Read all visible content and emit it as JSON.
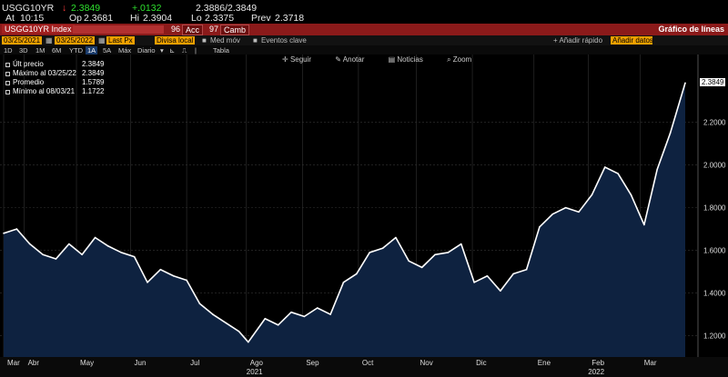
{
  "quote": {
    "ticker": "USGG10YR",
    "arrow": "↓",
    "price": "2.3849",
    "change": "+.0132",
    "bid_ask": "2.3886/2.3849",
    "at_label": "At",
    "time": "10:15",
    "op_label": "Op",
    "open": "2.3681",
    "hi_label": "Hi",
    "high": "2.3904",
    "lo_label": "Lo",
    "low": "2.3375",
    "prev_label": "Prev",
    "prev": "2.3718"
  },
  "redbar": {
    "index": "USGG10YR Index",
    "acc_num": "96",
    "acc": "Acc",
    "camb_num": "97",
    "camb": "Camb",
    "title": "Gráfico de líneas"
  },
  "controls": {
    "date_from": "03/25/2021",
    "date_to": "03/25/2022",
    "field": "Last Px",
    "currency": "Divisa local",
    "studies": "Med móv",
    "events": "Eventos clave",
    "quick_add": "+ Añadir rápido",
    "add_data": "Añadir datos"
  },
  "ranges": {
    "items": [
      "1D",
      "3D",
      "1M",
      "6M",
      "YTD",
      "1A",
      "5A",
      "Máx"
    ],
    "selected": "1A",
    "period": "Diario",
    "table": "Tabla"
  },
  "toolbar": {
    "follow": "Seguir",
    "annotate": "Anotar",
    "news": "Noticias",
    "zoom": "Zoom"
  },
  "legend": [
    {
      "label": "Últ precio",
      "value": "2.3849"
    },
    {
      "label": "Máximo al 03/25/22",
      "value": "2.3849"
    },
    {
      "label": "Promedio",
      "value": "1.5789"
    },
    {
      "label": "Mínimo al 08/03/21",
      "value": "1.1722"
    }
  ],
  "chart_data": {
    "type": "area",
    "x": [
      "2021-03-25",
      "2021-04-01",
      "2021-04-08",
      "2021-04-15",
      "2021-04-22",
      "2021-04-29",
      "2021-05-06",
      "2021-05-13",
      "2021-05-20",
      "2021-05-27",
      "2021-06-03",
      "2021-06-10",
      "2021-06-17",
      "2021-06-24",
      "2021-07-01",
      "2021-07-08",
      "2021-07-15",
      "2021-07-22",
      "2021-07-29",
      "2021-08-03",
      "2021-08-12",
      "2021-08-19",
      "2021-08-26",
      "2021-09-02",
      "2021-09-09",
      "2021-09-16",
      "2021-09-23",
      "2021-09-30",
      "2021-10-07",
      "2021-10-14",
      "2021-10-21",
      "2021-10-28",
      "2021-11-04",
      "2021-11-11",
      "2021-11-18",
      "2021-11-25",
      "2021-12-02",
      "2021-12-09",
      "2021-12-16",
      "2021-12-23",
      "2021-12-30",
      "2022-01-06",
      "2022-01-13",
      "2022-01-20",
      "2022-01-27",
      "2022-02-03",
      "2022-02-10",
      "2022-02-17",
      "2022-02-24",
      "2022-03-03",
      "2022-03-10",
      "2022-03-17",
      "2022-03-25"
    ],
    "values": [
      1.68,
      1.7,
      1.63,
      1.58,
      1.56,
      1.63,
      1.58,
      1.66,
      1.62,
      1.59,
      1.57,
      1.45,
      1.51,
      1.48,
      1.46,
      1.35,
      1.3,
      1.26,
      1.22,
      1.17,
      1.28,
      1.25,
      1.31,
      1.29,
      1.33,
      1.3,
      1.45,
      1.49,
      1.59,
      1.61,
      1.66,
      1.55,
      1.52,
      1.58,
      1.59,
      1.63,
      1.45,
      1.48,
      1.41,
      1.49,
      1.51,
      1.71,
      1.77,
      1.8,
      1.78,
      1.86,
      1.99,
      1.96,
      1.86,
      1.72,
      1.98,
      2.15,
      2.3849
    ],
    "ylim": [
      1.1,
      2.45
    ],
    "yticks": [
      "1.2000",
      "1.4000",
      "1.6000",
      "1.8000",
      "2.0000",
      "2.2000"
    ],
    "yticks_values": [
      1.2,
      1.4,
      1.6,
      1.8,
      2.0,
      2.2
    ],
    "xticks": [
      {
        "label": "Mar",
        "date": "2021-03-25"
      },
      {
        "label": "Abr",
        "date": "2021-04-05"
      },
      {
        "label": "May",
        "date": "2021-05-03"
      },
      {
        "label": "Jun",
        "date": "2021-06-01"
      },
      {
        "label": "Jul",
        "date": "2021-07-01"
      },
      {
        "label": "Ago",
        "date": "2021-08-02"
      },
      {
        "label": "Sep",
        "date": "2021-09-01"
      },
      {
        "label": "Oct",
        "date": "2021-10-01"
      },
      {
        "label": "Nov",
        "date": "2021-11-01"
      },
      {
        "label": "Dic",
        "date": "2021-12-01"
      },
      {
        "label": "Ene",
        "date": "2022-01-03"
      },
      {
        "label": "Feb",
        "date": "2022-02-01"
      },
      {
        "label": "Mar",
        "date": "2022-03-01"
      }
    ],
    "year_labels": [
      {
        "label": "2021",
        "date": "2021-08-02"
      },
      {
        "label": "2022",
        "date": "2022-02-01"
      }
    ],
    "last_value_label": "2.3849",
    "colors": {
      "line": "#ffffff",
      "fill": "#0e2240",
      "grid": "#333333"
    },
    "grid": true,
    "legend_position": "top-left"
  }
}
